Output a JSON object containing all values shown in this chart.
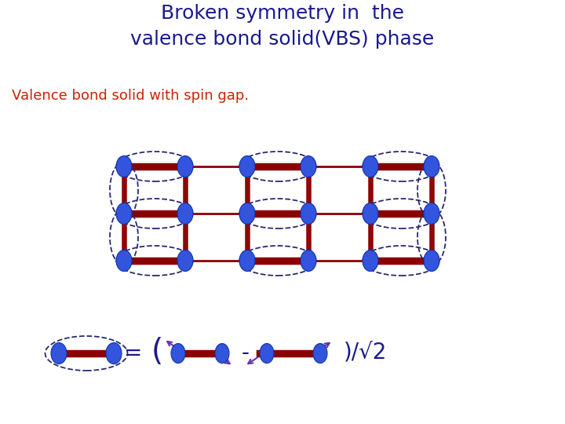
{
  "title": "Broken symmetry in  the\nvalence bond solid(VBS) phase",
  "title_color": "#1a1a8c",
  "subtitle": "Valence bond solid with spin gap.",
  "subtitle_color": "#cc2200",
  "bg_color": "#ffffff",
  "bond_color": "#8b0000",
  "ellipse_edge_color": "#2a2a6e",
  "node_color": "#3355dd",
  "node_edge_color": "#1133aa",
  "arrow_color": "#6633aa"
}
